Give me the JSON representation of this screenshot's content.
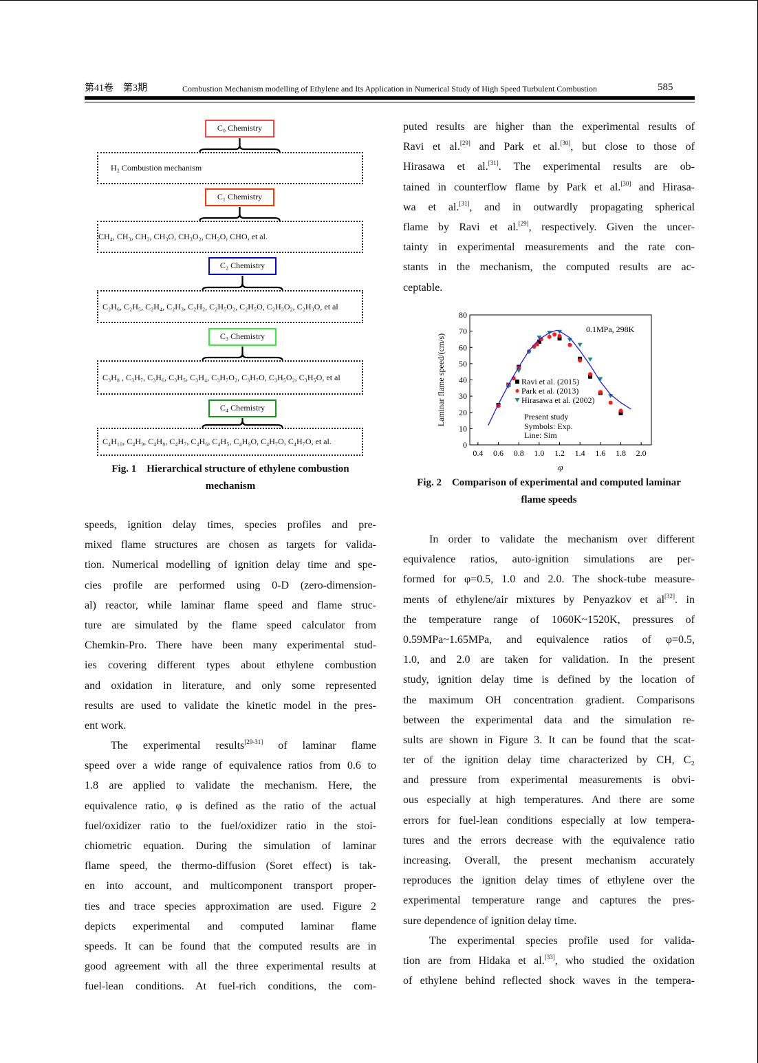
{
  "header": {
    "volume_issue": "第41卷　第3期",
    "running_title": "Combustion Mechanism modelling of Ethylene and Its Application in Numerical Study of High Speed Turbulent Combustion",
    "page_number": "585"
  },
  "figure1": {
    "levels": [
      {
        "chemistry": "C₀ Chemistry",
        "color": "#ff4444",
        "species": "H₂ Combustion mechanism"
      },
      {
        "chemistry": "C₁ Chemistry",
        "color": "#ff3300",
        "species": "CH₄, CH₃, CH₂, CH₃O, CH₃O₂, CH₂O, CHO, et al."
      },
      {
        "chemistry": "C₂ Chemistry",
        "color": "#0000ee",
        "species": "C₂H₆, C₂H₅, C₂H₄, C₂H₃, C₂H₂, C₂H₅O₂, C₂H₅O, C₂H₃O₂, C₂H₃O, et al"
      },
      {
        "chemistry": "C₃ Chemistry",
        "color": "#33ee33",
        "species": "C₃H₈ , C₃H₇, C₃H₆, C₃H₅, C₃H₄, C₃H₇O₂, C₃H₇O, C₃H₅O₂, C₃H₅O, et al"
      },
      {
        "chemistry": "C₄ Chemistry",
        "color": "#119911",
        "species": "C₄H₁₀, C₄H₉, C₄H₈, C₄H₇, C₄H₆, C₄H₅, C₄H₉O, C₄H₇O, C₄H₇O, et al."
      }
    ],
    "caption_line1": "Fig. 1　Hierarchical structure of ethylene combustion",
    "caption_line2": "mechanism"
  },
  "figure2": {
    "caption_line1": "Fig. 2　Comparison of experimental and computed laminar",
    "caption_line2": "flame speeds"
  },
  "chart_data": {
    "type": "scatter",
    "xlabel": "φ",
    "ylabel": "Laminar flame speed/(cm/s)",
    "xlim": [
      0.32,
      2.1
    ],
    "ylim": [
      0,
      80
    ],
    "xticks": [
      0.4,
      0.6,
      0.8,
      1.0,
      1.2,
      1.4,
      1.6,
      1.8,
      2.0
    ],
    "xtick_labels": [
      "0.4",
      "0.6",
      "0.8",
      "1.0",
      "1.2",
      "1.4",
      "1.6",
      "1.8",
      "2.0"
    ],
    "yticks": [
      0,
      10,
      20,
      30,
      40,
      50,
      60,
      70,
      80
    ],
    "ytick_labels": [
      "0",
      "10",
      "20",
      "30",
      "40",
      "50",
      "60",
      "70",
      "80"
    ],
    "grid": false,
    "legend_position": "center-left",
    "annotations": [
      "0.1MPa, 298K",
      "Present study",
      "Symbols: Exp.",
      "Line: Sim"
    ],
    "series": [
      {
        "name": "Ravi et al. (2015)",
        "marker": "square",
        "color": "#000000",
        "x": [
          0.6,
          0.7,
          0.8,
          1.0,
          1.2,
          1.4,
          1.5,
          1.6,
          1.8
        ],
        "y": [
          24.5,
          37,
          48,
          63.5,
          65.5,
          53,
          42,
          32,
          19.5
        ]
      },
      {
        "name": "Park et al. (2013)",
        "marker": "circle",
        "color": "#ff1a1a",
        "x": [
          0.6,
          0.7,
          0.75,
          0.8,
          0.9,
          0.95,
          0.98,
          1.02,
          1.1,
          1.15,
          1.2,
          1.3,
          1.4,
          1.5,
          1.6,
          1.7,
          1.8
        ],
        "y": [
          24,
          37,
          41,
          47.5,
          57.5,
          60.5,
          62,
          65,
          66.5,
          68,
          67,
          61.5,
          52,
          43.5,
          32.5,
          26,
          21
        ]
      },
      {
        "name": "Hirasawa et al. (2002)",
        "marker": "triangle-down",
        "color": "#1a8a8a",
        "x": [
          0.7,
          0.8,
          0.9,
          1.0,
          1.1,
          1.2,
          1.3,
          1.4,
          1.5,
          1.6,
          1.7
        ],
        "y": [
          36,
          45.5,
          57,
          66,
          69,
          69.5,
          64.5,
          61.5,
          52.5,
          40.5,
          30
        ]
      },
      {
        "name": "Sim",
        "marker": "line",
        "color": "#1a1aee",
        "x": [
          0.5,
          0.6,
          0.7,
          0.8,
          0.9,
          1.0,
          1.1,
          1.17,
          1.2,
          1.3,
          1.4,
          1.5,
          1.6,
          1.7,
          1.8,
          1.9
        ],
        "y": [
          12,
          25,
          37,
          48,
          58,
          65,
          69,
          70.5,
          70,
          66,
          58,
          49,
          39,
          31,
          26,
          22
        ]
      }
    ]
  },
  "text": {
    "left": [
      {
        "t": "speeds, ignition delay times, species profiles and pre-"
      },
      {
        "t": "mixed flame structures are chosen as targets for valida-"
      },
      {
        "t": "tion. Numerical modelling of ignition delay time and spe-"
      },
      {
        "t": "cies profile are performed using 0-D (zero-dimension-"
      },
      {
        "t": "al) reactor, while laminar flame speed and flame struc-"
      },
      {
        "t": "ture are simulated by the flame speed calculator from"
      },
      {
        "t": "Chemkin-Pro. There have been many experimental stud-"
      },
      {
        "t": "ies covering different types about ethylene combustion"
      },
      {
        "t": "and oxidation in literature, and only some represented"
      },
      {
        "t": "results are used to validate the kinetic model in the pres-"
      },
      {
        "t": "ent work.",
        "last": true
      },
      {
        "t": "The experimental results [29-31] of laminar flame",
        "indent": true
      },
      {
        "t": "speed over a wide range of equivalence ratios from 0.6 to"
      },
      {
        "t": "1.8 are applied to validate the mechanism. Here, the"
      },
      {
        "t": "equivalence ratio, φ is defined as the ratio of the actual"
      },
      {
        "t": "fuel/oxidizer ratio to the fuel/oxidizer ratio in the stoi-"
      },
      {
        "t": "chiometric equation. During the simulation of laminar"
      },
      {
        "t": "flame speed, the thermo-diffusion (Soret effect) is tak-"
      },
      {
        "t": "en into account, and multicomponent transport proper-"
      },
      {
        "t": "ties and trace species approximation are used. Figure 2"
      },
      {
        "t": "depicts experimental and computed laminar flame"
      },
      {
        "t": "speeds. It can be found that the computed results are in"
      },
      {
        "t": "good agreement with all the three experimental results at"
      },
      {
        "t": "fuel-lean conditions. At fuel-rich conditions, the com-"
      }
    ],
    "right_top": [
      {
        "t": "puted results are higher than the experimental results of"
      },
      {
        "t": "Ravi et al. [29] and Park et al. [30], but close to those of"
      },
      {
        "t": "Hirasawa et al. [31]. The experimental results are ob-"
      },
      {
        "t": "tained in counterflow flame by Park et al. [30] and Hirasa-"
      },
      {
        "t": "wa et al. [31], and in outwardly propagating spherical"
      },
      {
        "t": "flame by Ravi et al. [29], respectively. Given the uncer-"
      },
      {
        "t": "tainty in experimental measurements and the rate con-"
      },
      {
        "t": "stants in the mechanism, the computed results are ac-"
      },
      {
        "t": "ceptable.",
        "last": true
      }
    ],
    "right_bottom": [
      {
        "t": "In order to validate the mechanism over different",
        "indent": true
      },
      {
        "t": "equivalence ratios, auto-ignition simulations are per-"
      },
      {
        "t": "formed for φ=0.5, 1.0 and 2.0. The shock-tube measure-"
      },
      {
        "t": "ments of ethylene/air mixtures by Penyazkov et al[32]. in"
      },
      {
        "t": "the temperature range of 1060K~1520K, pressures of"
      },
      {
        "t": "0.59MPa~1.65MPa, and equivalence ratios of φ=0.5,"
      },
      {
        "t": "1.0, and 2.0 are taken for validation. In the present"
      },
      {
        "t": "study, ignition delay time is defined by the location of"
      },
      {
        "t": "the maximum OH concentration gradient. Comparisons"
      },
      {
        "t": "between the experimental data and the simulation re-"
      },
      {
        "t": "sults are shown in Figure 3. It can be found that the scat-"
      },
      {
        "t": "ter of the ignition delay time characterized by CH, C₂"
      },
      {
        "t": "and pressure from experimental measurements is obvi-"
      },
      {
        "t": "ous especially at high temperatures. And there are some"
      },
      {
        "t": "errors for fuel-lean conditions especially at low tempera-"
      },
      {
        "t": "tures and the errors decrease with the equivalence ratio"
      },
      {
        "t": "increasing. Overall, the present mechanism accurately"
      },
      {
        "t": "reproduces the ignition delay times of ethylene over the"
      },
      {
        "t": "experimental temperature range and captures the pres-"
      },
      {
        "t": "sure dependence of ignition delay time.",
        "last": true
      },
      {
        "t": "The experimental species profile used for valida-",
        "indent": true
      },
      {
        "t": "tion are from Hidaka et al.[33], who studied the oxidation"
      },
      {
        "t": "of ethylene behind reflected shock waves in the tempera-"
      }
    ]
  }
}
